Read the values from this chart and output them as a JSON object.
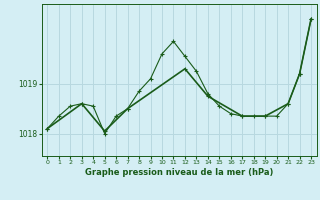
{
  "title": "Graphe pression niveau de la mer (hPa)",
  "background_color": "#d4eef4",
  "grid_color": "#b8d8e0",
  "line_color": "#1a5c1a",
  "x_ticks": [
    0,
    1,
    2,
    3,
    4,
    5,
    6,
    7,
    8,
    9,
    10,
    11,
    12,
    13,
    14,
    15,
    16,
    17,
    18,
    19,
    20,
    21,
    22,
    23
  ],
  "y_ticks": [
    1018,
    1019
  ],
  "ylim": [
    1017.55,
    1020.6
  ],
  "xlim": [
    -0.5,
    23.5
  ],
  "series1_x": [
    0,
    1,
    2,
    3,
    4,
    5,
    6,
    7,
    8,
    9,
    10,
    11,
    12,
    13,
    14,
    15,
    16,
    17,
    18,
    19,
    20,
    21,
    22,
    23
  ],
  "series1_y": [
    1018.1,
    1018.35,
    1018.55,
    1018.6,
    1018.55,
    1018.0,
    1018.35,
    1018.5,
    1018.85,
    1019.1,
    1019.6,
    1019.85,
    1019.55,
    1019.25,
    1018.8,
    1018.55,
    1018.4,
    1018.35,
    1018.35,
    1018.35,
    1018.35,
    1018.6,
    1019.2,
    1020.3
  ],
  "series2_x": [
    0,
    3,
    5,
    7,
    12,
    14,
    17,
    19,
    21,
    22,
    23
  ],
  "series2_y": [
    1018.1,
    1018.6,
    1018.05,
    1018.5,
    1019.3,
    1018.75,
    1018.35,
    1018.35,
    1018.6,
    1019.2,
    1020.3
  ],
  "ylabel_1018": 1018,
  "ylabel_1019": 1019
}
